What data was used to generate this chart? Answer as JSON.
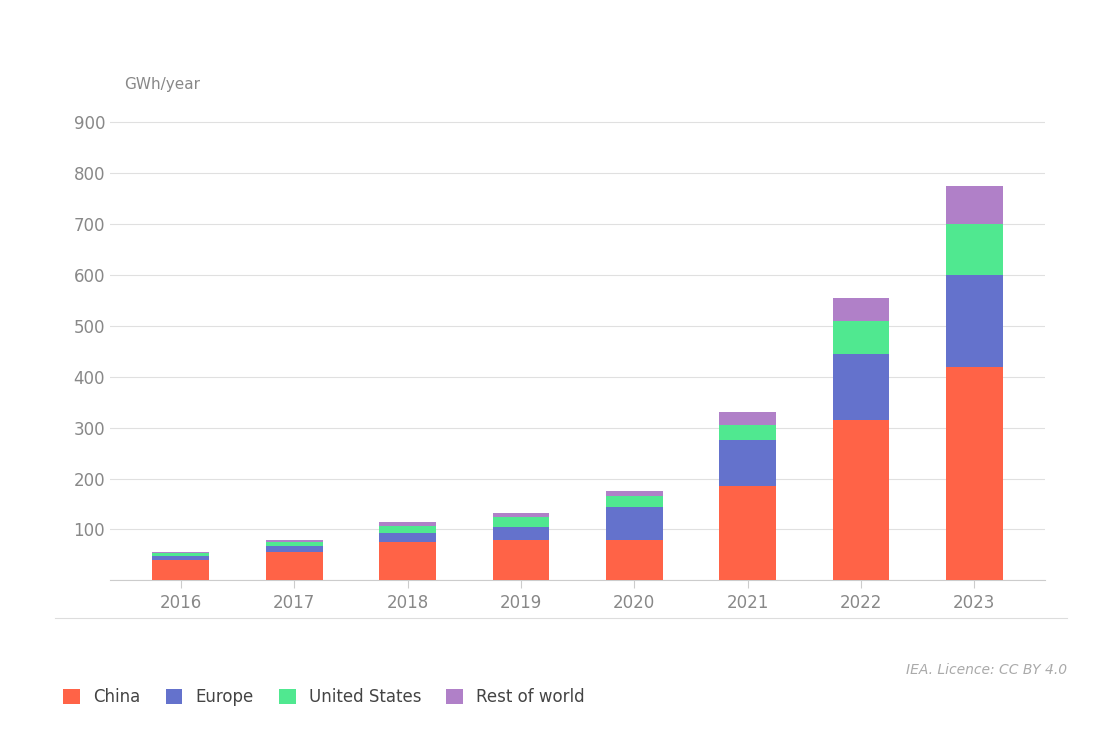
{
  "years": [
    "2016",
    "2017",
    "2018",
    "2019",
    "2020",
    "2021",
    "2022",
    "2023"
  ],
  "china": [
    40,
    55,
    75,
    80,
    80,
    185,
    315,
    420
  ],
  "europe": [
    8,
    12,
    18,
    25,
    65,
    90,
    130,
    180
  ],
  "united_states": [
    5,
    8,
    14,
    20,
    20,
    30,
    65,
    100
  ],
  "rest_of_world": [
    3,
    5,
    8,
    8,
    10,
    25,
    45,
    75
  ],
  "colors": {
    "china": "#FF6347",
    "europe": "#6472CC",
    "united_states": "#50E890",
    "rest_of_world": "#B080C8"
  },
  "ylabel": "GWh/year",
  "ylim": [
    0,
    950
  ],
  "yticks": [
    0,
    100,
    200,
    300,
    400,
    500,
    600,
    700,
    800,
    900
  ],
  "legend_labels": [
    "China",
    "Europe",
    "United States",
    "Rest of world"
  ],
  "attribution": "IEA. Licence: CC BY 4.0",
  "background_color": "#ffffff",
  "grid_color": "#e0e0e0",
  "bar_width": 0.5
}
